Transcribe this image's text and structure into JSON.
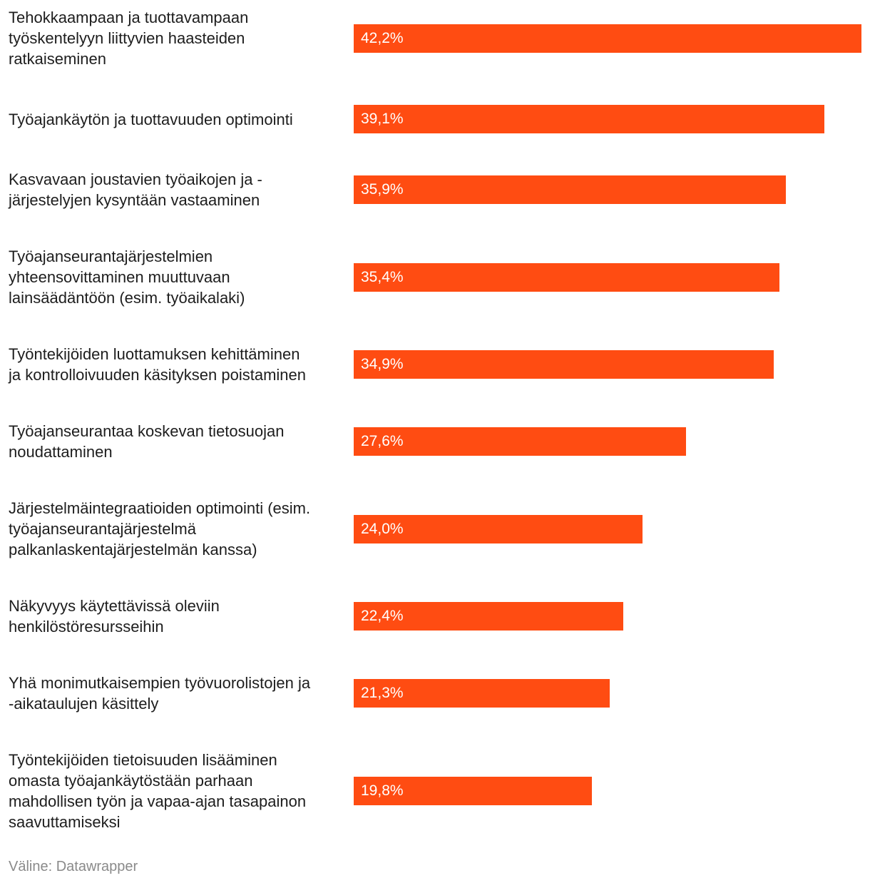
{
  "chart_data": {
    "type": "bar",
    "orientation": "horizontal",
    "title": "",
    "xlabel": "",
    "ylabel": "",
    "xlim": [
      0,
      42.2
    ],
    "grid": false,
    "categories": [
      "Tehokkaampaan ja tuottavampaan\ntyöskentelyyn liittyvien haasteiden\nratkaiseminen",
      "Työajankäytön ja tuottavuuden optimointi",
      "Kasvavaan joustavien työaikojen ja -\njärjestelyjen kysyntään vastaaminen",
      "Työajanseurantajärjestelmien\nyhteensovittaminen muuttuvaan\nlainsäädäntöön (esim. työaikalaki)",
      "Työntekijöiden luottamuksen kehittäminen\nja kontrolloivuuden käsityksen poistaminen",
      "Työajanseurantaa koskevan tietosuojan\nnoudattaminen",
      "Järjestelmäintegraatioiden optimointi (esim.\ntyöajanseurantajärjestelmä\npalkanlaskentajärjestelmän kanssa)",
      "Näkyvyys käytettävissä oleviin\nhenkilöstöresursseihin",
      "Yhä monimutkaisempien työvuorolistojen ja\n-aikataulujen käsittely",
      "Työntekijöiden tietoisuuden lisääminen\nomasta työajankäytöstään parhaan\nmahdollisen työn ja vapaa-ajan tasapainon\nsaavuttamiseksi"
    ],
    "values": [
      42.2,
      39.1,
      35.9,
      35.4,
      34.9,
      27.6,
      24.0,
      22.4,
      21.3,
      19.8
    ],
    "value_labels": [
      "42,2%",
      "39,1%",
      "35,9%",
      "35,4%",
      "34,9%",
      "27,6%",
      "24,0%",
      "22,4%",
      "21,3%",
      "19,8%"
    ],
    "bar_color": "#ff4c12",
    "source": "Väline: Datawrapper"
  }
}
